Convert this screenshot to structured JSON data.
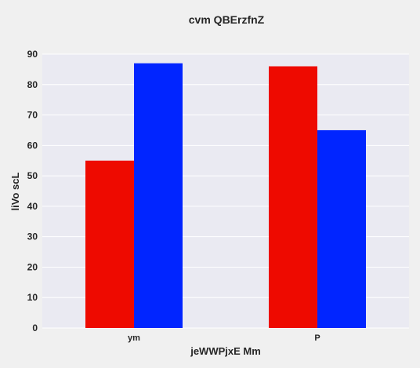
{
  "chart_data": {
    "type": "bar",
    "title": "cvm QBErzfnZ",
    "xlabel": "jeWWPjxE Mm",
    "ylabel": "liVo scL",
    "categories": [
      "ym",
      "P"
    ],
    "series": [
      {
        "values": [
          55,
          86
        ],
        "color": "#ee0a00"
      },
      {
        "values": [
          87,
          65
        ],
        "color": "#0125ff"
      }
    ],
    "ylim": [
      0,
      90
    ],
    "yticks": [
      0,
      10,
      20,
      30,
      40,
      50,
      60,
      70,
      80,
      90
    ],
    "grid": true,
    "legend": "none",
    "background": "#eaeaf2"
  }
}
